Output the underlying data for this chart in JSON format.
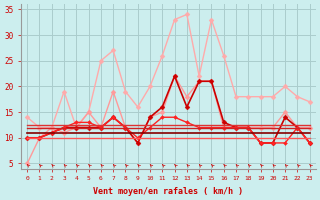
{
  "x": [
    0,
    1,
    2,
    3,
    4,
    5,
    6,
    7,
    8,
    9,
    10,
    11,
    12,
    13,
    14,
    15,
    16,
    17,
    18,
    19,
    20,
    21,
    22,
    23
  ],
  "series": [
    {
      "name": "rafales_light1",
      "color": "#ffaaaa",
      "lw": 1.0,
      "marker": "D",
      "ms": 2.5,
      "y": [
        14,
        12,
        12,
        19,
        12,
        15,
        25,
        27,
        19,
        16,
        20,
        26,
        33,
        34,
        22,
        33,
        26,
        18,
        18,
        18,
        18,
        20,
        18,
        17
      ]
    },
    {
      "name": "rafales_light2",
      "color": "#ff9999",
      "lw": 1.0,
      "marker": "D",
      "ms": 2.5,
      "y": [
        5,
        10,
        12,
        11,
        12,
        15,
        12,
        19,
        12,
        9,
        14,
        15,
        22,
        18,
        21,
        21,
        12,
        12,
        12,
        12,
        12,
        15,
        12,
        12
      ]
    },
    {
      "name": "mean_dark1",
      "color": "#cc0000",
      "lw": 1.2,
      "marker": "D",
      "ms": 2.5,
      "y": [
        10,
        10,
        11,
        12,
        12,
        12,
        12,
        14,
        12,
        9,
        14,
        16,
        22,
        16,
        21,
        21,
        13,
        12,
        12,
        9,
        9,
        14,
        12,
        9
      ]
    },
    {
      "name": "mean_dark2",
      "color": "#ff2222",
      "lw": 1.0,
      "marker": "D",
      "ms": 2.0,
      "y": [
        10,
        10,
        11,
        12,
        13,
        13,
        12,
        14,
        12,
        10,
        12,
        14,
        14,
        13,
        12,
        12,
        12,
        12,
        12,
        9,
        9,
        9,
        12,
        9
      ]
    },
    {
      "name": "mean_flat1",
      "color": "#880000",
      "lw": 1.2,
      "marker": "",
      "ms": 0,
      "y": [
        11,
        11,
        11,
        11,
        11,
        11,
        11,
        11,
        11,
        11,
        11,
        11,
        11,
        11,
        11,
        11,
        11,
        11,
        11,
        11,
        11,
        11,
        11,
        11
      ]
    },
    {
      "name": "mean_flat2",
      "color": "#cc2222",
      "lw": 1.0,
      "marker": "",
      "ms": 0,
      "y": [
        12,
        12,
        12,
        12,
        12,
        12,
        12,
        12,
        12,
        12,
        12,
        12,
        12,
        12,
        12,
        12,
        12,
        12,
        12,
        12,
        12,
        12,
        12,
        12
      ]
    },
    {
      "name": "mean_flat3",
      "color": "#dd3333",
      "lw": 1.0,
      "marker": "",
      "ms": 0,
      "y": [
        12.5,
        12.5,
        12.5,
        12.5,
        12.5,
        12.5,
        12.5,
        12.5,
        12.5,
        12.5,
        12.5,
        12.5,
        12.5,
        12.5,
        12.5,
        12.5,
        12.5,
        12.5,
        12.5,
        12.5,
        12.5,
        12.5,
        12.5,
        12.5
      ]
    },
    {
      "name": "mean_flat4",
      "color": "#ff5555",
      "lw": 1.0,
      "marker": "",
      "ms": 0,
      "y": [
        10,
        10,
        10,
        10,
        10,
        10,
        10,
        10,
        10,
        10,
        10,
        10,
        10,
        10,
        10,
        10,
        10,
        10,
        10,
        10,
        10,
        10,
        10,
        10
      ]
    }
  ],
  "arrow_color": "#cc0000",
  "xlabel": "Vent moyen/en rafales ( km/h )",
  "xlim": [
    -0.5,
    23.5
  ],
  "ylim": [
    4,
    36
  ],
  "yticks": [
    5,
    10,
    15,
    20,
    25,
    30,
    35
  ],
  "xticks": [
    0,
    1,
    2,
    3,
    4,
    5,
    6,
    7,
    8,
    9,
    10,
    11,
    12,
    13,
    14,
    15,
    16,
    17,
    18,
    19,
    20,
    21,
    22,
    23
  ],
  "bg_color": "#cceeee",
  "grid_color": "#aacccc",
  "tick_color": "#cc0000",
  "label_color": "#cc0000"
}
